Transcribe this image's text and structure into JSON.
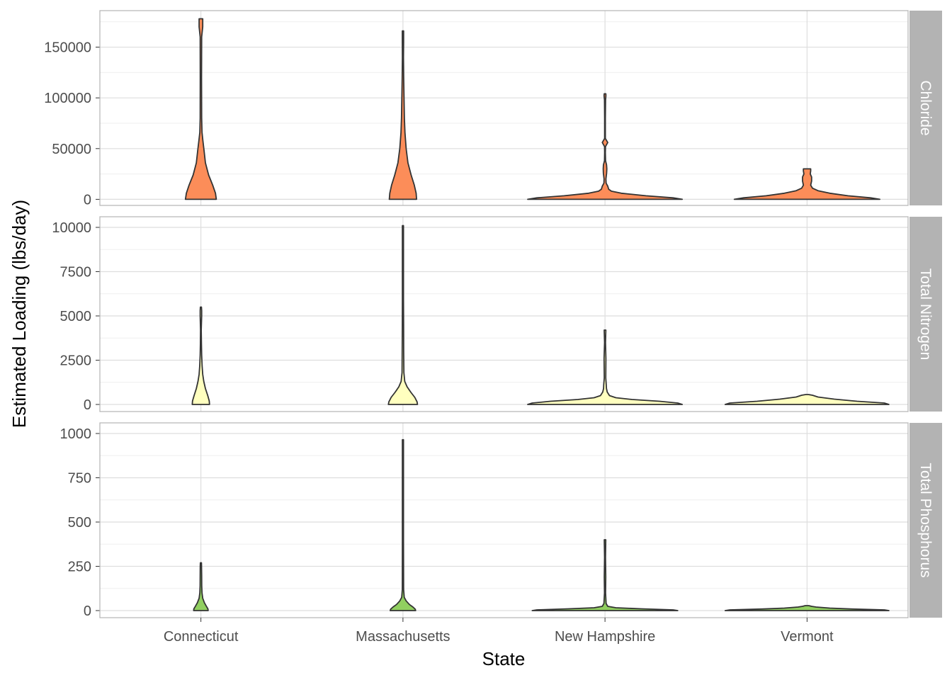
{
  "chart_data": {
    "type": "violin",
    "xlabel": "State",
    "ylabel": "Estimated Loading (lbs/day)",
    "categories": [
      "Connecticut",
      "Massachusetts",
      "New Hampshire",
      "Vermont"
    ],
    "grid": true,
    "legend": "none",
    "facets": [
      {
        "label": "Chloride",
        "color": "#FC8D59",
        "ylim": [
          -6000,
          186000
        ],
        "ticks": [
          0,
          50000,
          100000,
          150000
        ],
        "tick_labels": [
          "0",
          "50000",
          "100000",
          "150000"
        ],
        "violins": [
          {
            "category": "Connecticut",
            "profile": [
              [
                0,
                0.17
              ],
              [
                6000,
                0.16
              ],
              [
                14000,
                0.13
              ],
              [
                24000,
                0.085
              ],
              [
                36000,
                0.05
              ],
              [
                48000,
                0.035
              ],
              [
                58000,
                0.022
              ],
              [
                66000,
                0.012
              ],
              [
                80000,
                0.008
              ],
              [
                120000,
                0.007
              ],
              [
                160000,
                0.008
              ],
              [
                170000,
                0.02
              ],
              [
                178000,
                0.02
              ]
            ]
          },
          {
            "category": "Massachusetts",
            "profile": [
              [
                0,
                0.15
              ],
              [
                6000,
                0.145
              ],
              [
                14000,
                0.125
              ],
              [
                24000,
                0.09
              ],
              [
                36000,
                0.055
              ],
              [
                50000,
                0.035
              ],
              [
                66000,
                0.022
              ],
              [
                80000,
                0.016
              ],
              [
                100000,
                0.012
              ],
              [
                120000,
                0.008
              ],
              [
                140000,
                0.006
              ],
              [
                155000,
                0.007
              ],
              [
                166000,
                0.007
              ]
            ]
          },
          {
            "category": "New Hampshire",
            "profile": [
              [
                0,
                0.85
              ],
              [
                1500,
                0.75
              ],
              [
                3500,
                0.45
              ],
              [
                6000,
                0.18
              ],
              [
                8000,
                0.07
              ],
              [
                10000,
                0.04
              ],
              [
                13000,
                0.03
              ],
              [
                16000,
                0.012
              ],
              [
                20000,
                0.01
              ],
              [
                26000,
                0.018
              ],
              [
                30000,
                0.02
              ],
              [
                34000,
                0.017
              ],
              [
                38000,
                0.006
              ],
              [
                46000,
                0.004
              ],
              [
                52000,
                0.005
              ],
              [
                56000,
                0.03
              ],
              [
                60000,
                0.004
              ],
              [
                80000,
                0.004
              ],
              [
                98000,
                0.006
              ],
              [
                102000,
                0.01
              ],
              [
                104000,
                0.009
              ]
            ]
          },
          {
            "category": "Vermont",
            "profile": [
              [
                0,
                0.8
              ],
              [
                1500,
                0.7
              ],
              [
                3500,
                0.45
              ],
              [
                6000,
                0.25
              ],
              [
                8500,
                0.12
              ],
              [
                11000,
                0.06
              ],
              [
                14000,
                0.04
              ],
              [
                18000,
                0.05
              ],
              [
                22000,
                0.05
              ],
              [
                25000,
                0.035
              ],
              [
                28000,
                0.04
              ],
              [
                30000,
                0.04
              ]
            ]
          }
        ]
      },
      {
        "label": "Total Nitrogen",
        "color": "#FFFFBF",
        "ylim": [
          -400,
          10600
        ],
        "ticks": [
          0,
          2500,
          5000,
          7500,
          10000
        ],
        "tick_labels": [
          "0",
          "2500",
          "5000",
          "7500",
          "10000"
        ],
        "violins": [
          {
            "category": "Connecticut",
            "profile": [
              [
                0,
                0.095
              ],
              [
                200,
                0.092
              ],
              [
                500,
                0.075
              ],
              [
                900,
                0.05
              ],
              [
                1300,
                0.032
              ],
              [
                1700,
                0.02
              ],
              [
                2200,
                0.013
              ],
              [
                2800,
                0.008
              ],
              [
                3400,
                0.006
              ],
              [
                4200,
                0.004
              ],
              [
                5000,
                0.008
              ],
              [
                5300,
                0.008
              ],
              [
                5500,
                0.006
              ]
            ]
          },
          {
            "category": "Massachusetts",
            "profile": [
              [
                0,
                0.16
              ],
              [
                150,
                0.155
              ],
              [
                400,
                0.13
              ],
              [
                700,
                0.085
              ],
              [
                1000,
                0.045
              ],
              [
                1300,
                0.02
              ],
              [
                1800,
                0.01
              ],
              [
                3000,
                0.008
              ],
              [
                4500,
                0.007
              ],
              [
                6000,
                0.006
              ],
              [
                8000,
                0.006
              ],
              [
                10100,
                0.006
              ]
            ]
          },
          {
            "category": "New Hampshire",
            "profile": [
              [
                0,
                0.85
              ],
              [
                80,
                0.8
              ],
              [
                180,
                0.6
              ],
              [
                280,
                0.3
              ],
              [
                380,
                0.12
              ],
              [
                500,
                0.05
              ],
              [
                700,
                0.025
              ],
              [
                900,
                0.016
              ],
              [
                1100,
                0.014
              ],
              [
                1500,
                0.008
              ],
              [
                2600,
                0.01
              ],
              [
                3500,
                0.005
              ],
              [
                4200,
                0.009
              ]
            ]
          },
          {
            "category": "Vermont",
            "profile": [
              [
                0,
                0.9
              ],
              [
                80,
                0.85
              ],
              [
                180,
                0.55
              ],
              [
                300,
                0.3
              ],
              [
                420,
                0.12
              ],
              [
                520,
                0.06
              ],
              [
                560,
                0.015
              ]
            ]
          }
        ]
      },
      {
        "label": "Total Phosphorus",
        "color": "#91CF60",
        "ylim": [
          -40,
          1060
        ],
        "ticks": [
          0,
          250,
          500,
          750,
          1000
        ],
        "tick_labels": [
          "0",
          "250",
          "500",
          "750",
          "1000"
        ],
        "violins": [
          {
            "category": "Connecticut",
            "profile": [
              [
                0,
                0.08
              ],
              [
                10,
                0.077
              ],
              [
                25,
                0.06
              ],
              [
                45,
                0.038
              ],
              [
                70,
                0.02
              ],
              [
                100,
                0.012
              ],
              [
                140,
                0.009
              ],
              [
                200,
                0.008
              ],
              [
                250,
                0.007
              ],
              [
                270,
                0.006
              ]
            ]
          },
          {
            "category": "Massachusetts",
            "profile": [
              [
                0,
                0.14
              ],
              [
                8,
                0.135
              ],
              [
                20,
                0.11
              ],
              [
                35,
                0.07
              ],
              [
                55,
                0.035
              ],
              [
                75,
                0.014
              ],
              [
                120,
                0.007
              ],
              [
                400,
                0.006
              ],
              [
                700,
                0.006
              ],
              [
                965,
                0.006
              ]
            ]
          },
          {
            "category": "New Hampshire",
            "profile": [
              [
                0,
                0.8
              ],
              [
                4,
                0.75
              ],
              [
                10,
                0.4
              ],
              [
                16,
                0.12
              ],
              [
                24,
                0.03
              ],
              [
                40,
                0.012
              ],
              [
                100,
                0.006
              ],
              [
                190,
                0.008
              ],
              [
                300,
                0.005
              ],
              [
                400,
                0.008
              ]
            ]
          },
          {
            "category": "Vermont",
            "profile": [
              [
                0,
                0.9
              ],
              [
                4,
                0.85
              ],
              [
                9,
                0.5
              ],
              [
                14,
                0.25
              ],
              [
                20,
                0.1
              ],
              [
                24,
                0.05
              ],
              [
                28,
                0.02
              ]
            ]
          }
        ]
      }
    ]
  }
}
